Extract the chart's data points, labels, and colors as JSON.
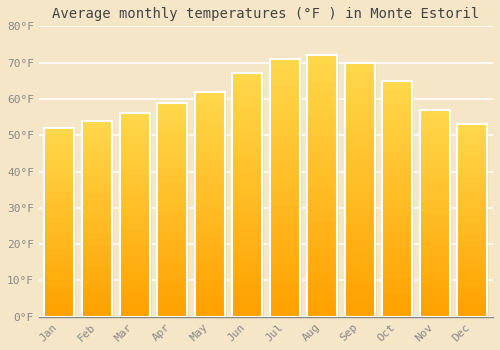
{
  "months": [
    "Jan",
    "Feb",
    "Mar",
    "Apr",
    "May",
    "Jun",
    "Jul",
    "Aug",
    "Sep",
    "Oct",
    "Nov",
    "Dec"
  ],
  "values": [
    52,
    54,
    56,
    59,
    62,
    67,
    71,
    72,
    70,
    65,
    57,
    53
  ],
  "bar_color_main": "#FFA500",
  "bar_color_light": "#FFD04A",
  "title": "Average monthly temperatures (°F ) in Monte Estoril",
  "ylim": [
    0,
    80
  ],
  "yticks": [
    0,
    10,
    20,
    30,
    40,
    50,
    60,
    70,
    80
  ],
  "ytick_labels": [
    "0°F",
    "10°F",
    "20°F",
    "30°F",
    "40°F",
    "50°F",
    "60°F",
    "70°F",
    "80°F"
  ],
  "background_color": "#f5e6c8",
  "plot_bg_color": "#f5e6c8",
  "grid_color": "#ffffff",
  "title_fontsize": 10,
  "tick_fontsize": 8,
  "bar_width": 0.8,
  "tick_label_color": "#888888",
  "title_color": "#444444"
}
